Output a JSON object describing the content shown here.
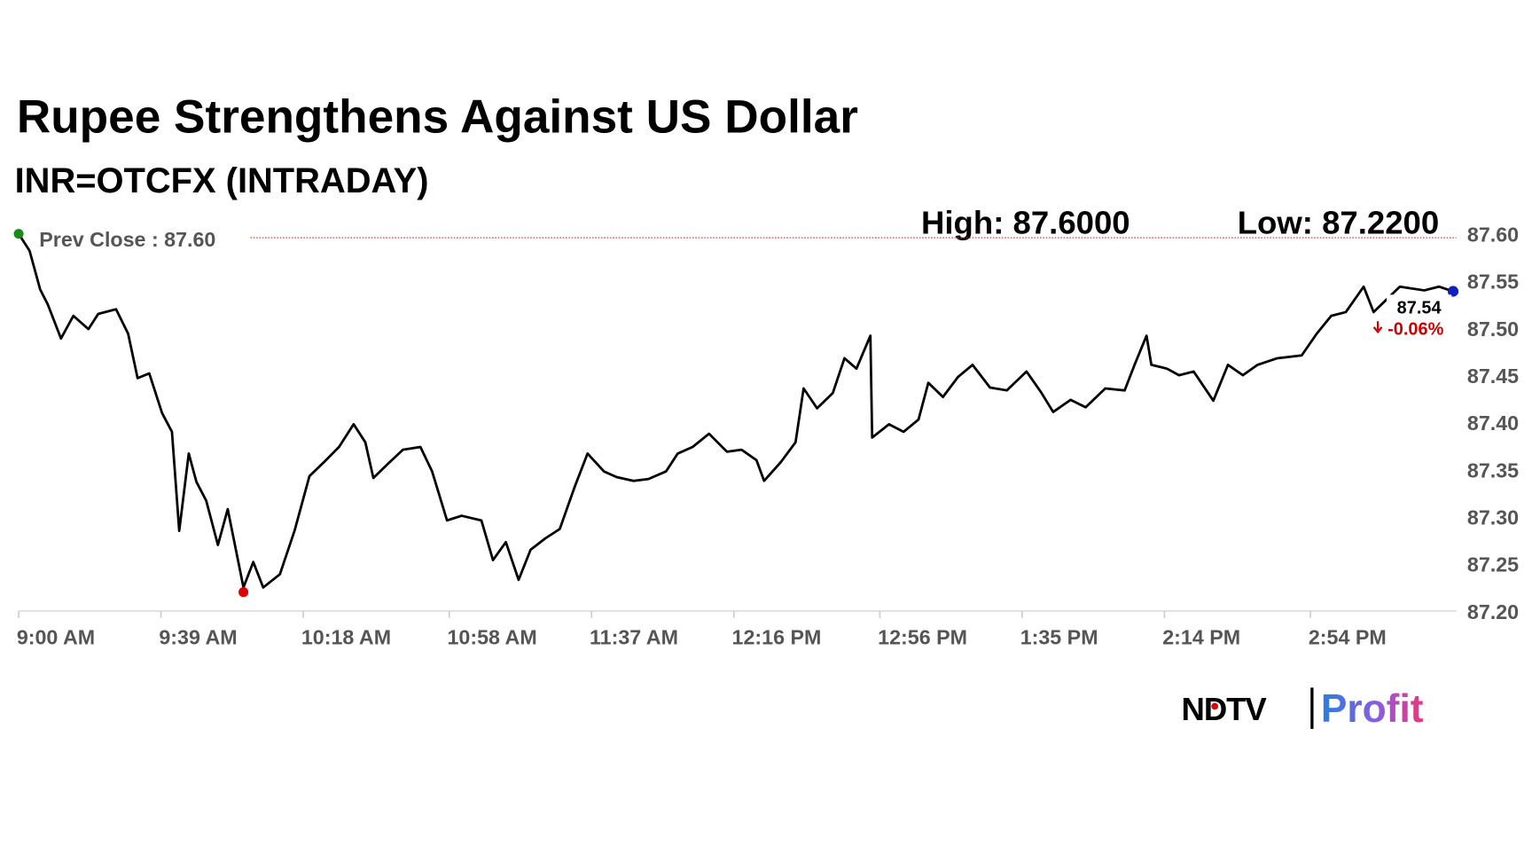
{
  "chart_data": {
    "type": "line",
    "title": "Rupee Strengthens Against US Dollar",
    "subtitle": "INR=OTCFX (INTRADAY)",
    "high_label": "High: 87.6000",
    "low_label": "Low: 87.2200",
    "prev_close": {
      "label": "Prev Close : 87.60",
      "value": 87.6
    },
    "last_label": "87.54",
    "change_label": "-0.06%",
    "colors": {
      "line": "#000000",
      "start": "#1a8a1a",
      "low": "#e00000",
      "end": "#1020c0",
      "prev_close": "#c0392b",
      "change": "#d00000"
    },
    "low_point": {
      "x": 601.6,
      "value": 87.22
    },
    "xlim": [
      540,
      934
    ],
    "ylim": [
      87.2,
      87.6
    ],
    "xticks": [
      {
        "value": 540,
        "label": "9:00 AM"
      },
      {
        "value": 579,
        "label": "9:39 AM"
      },
      {
        "value": 618,
        "label": "10:18 AM"
      },
      {
        "value": 658,
        "label": "10:58 AM"
      },
      {
        "value": 697,
        "label": "11:37 AM"
      },
      {
        "value": 736,
        "label": "12:16 PM"
      },
      {
        "value": 776,
        "label": "12:56 PM"
      },
      {
        "value": 815,
        "label": "1:35 PM"
      },
      {
        "value": 854,
        "label": "2:14 PM"
      },
      {
        "value": 894,
        "label": "2:54 PM"
      }
    ],
    "yticks": [
      {
        "value": 87.2,
        "label": "87.20"
      },
      87.25,
      {
        "value": 87.3,
        "label": "87.30"
      },
      87.35,
      {
        "value": 87.4,
        "label": "87.40"
      },
      87.45,
      {
        "value": 87.5,
        "label": "87.50"
      },
      87.55,
      {
        "value": 87.6,
        "label": "87.60"
      }
    ],
    "x": [
      540,
      543,
      545.9,
      548,
      551.6,
      555,
      559.1,
      561.8,
      566.7,
      570,
      572.6,
      575.8,
      579.3,
      582,
      584,
      586.6,
      588.7,
      591.4,
      594.6,
      597.3,
      601.6,
      604.3,
      607,
      611.6,
      615.6,
      619.7,
      623.7,
      627.8,
      631.8,
      635,
      637.2,
      641.2,
      645.3,
      650.1,
      653.3,
      657.4,
      661.4,
      666.8,
      670,
      673.5,
      677,
      680.3,
      684.3,
      688.3,
      692.4,
      695.9,
      700.4,
      703.9,
      708.5,
      712.6,
      717.4,
      720.6,
      724.7,
      729.2,
      734.1,
      738.1,
      742.2,
      744.3,
      748.9,
      752.9,
      755.1,
      758.8,
      763.1,
      766.3,
      769.6,
      773.4,
      773.9,
      778.5,
      782.5,
      786.6,
      789.3,
      793.3,
      797.4,
      801.4,
      806.2,
      810.8,
      816.2,
      820.2,
      823.5,
      828.3,
      832.4,
      837.8,
      843.1,
      845.8,
      849.1,
      850.4,
      854.7,
      858,
      862,
      867.4,
      871.4,
      875.5,
      879.5,
      884.9,
      891.6,
      895.7,
      899.7,
      903.7,
      908.6,
      911.3,
      918.5,
      925.2,
      929.2,
      933.1
    ],
    "values": [
      87.6,
      87.582,
      87.541,
      87.525,
      87.489,
      87.513,
      87.499,
      87.515,
      87.52,
      87.494,
      87.447,
      87.452,
      87.41,
      87.39,
      87.285,
      87.367,
      87.337,
      87.317,
      87.27,
      87.308,
      87.225,
      87.252,
      87.225,
      87.239,
      87.285,
      87.343,
      87.358,
      87.374,
      87.398,
      87.379,
      87.341,
      87.356,
      87.371,
      87.374,
      87.348,
      87.296,
      87.301,
      87.296,
      87.254,
      87.273,
      87.233,
      87.265,
      87.277,
      87.287,
      87.332,
      87.367,
      87.348,
      87.342,
      87.338,
      87.34,
      87.348,
      87.367,
      87.374,
      87.388,
      87.369,
      87.371,
      87.36,
      87.338,
      87.358,
      87.379,
      87.436,
      87.415,
      87.431,
      87.468,
      87.457,
      87.492,
      87.384,
      87.398,
      87.39,
      87.403,
      87.442,
      87.427,
      87.448,
      87.461,
      87.437,
      87.434,
      87.454,
      87.432,
      87.411,
      87.424,
      87.416,
      87.436,
      87.434,
      87.461,
      87.492,
      87.461,
      87.457,
      87.45,
      87.454,
      87.423,
      87.461,
      87.45,
      87.461,
      87.468,
      87.471,
      87.494,
      87.513,
      87.517,
      87.544,
      87.517,
      87.544,
      87.54,
      87.544,
      87.539
    ]
  },
  "brand": {
    "name": "NDTV",
    "product": "Profit"
  }
}
